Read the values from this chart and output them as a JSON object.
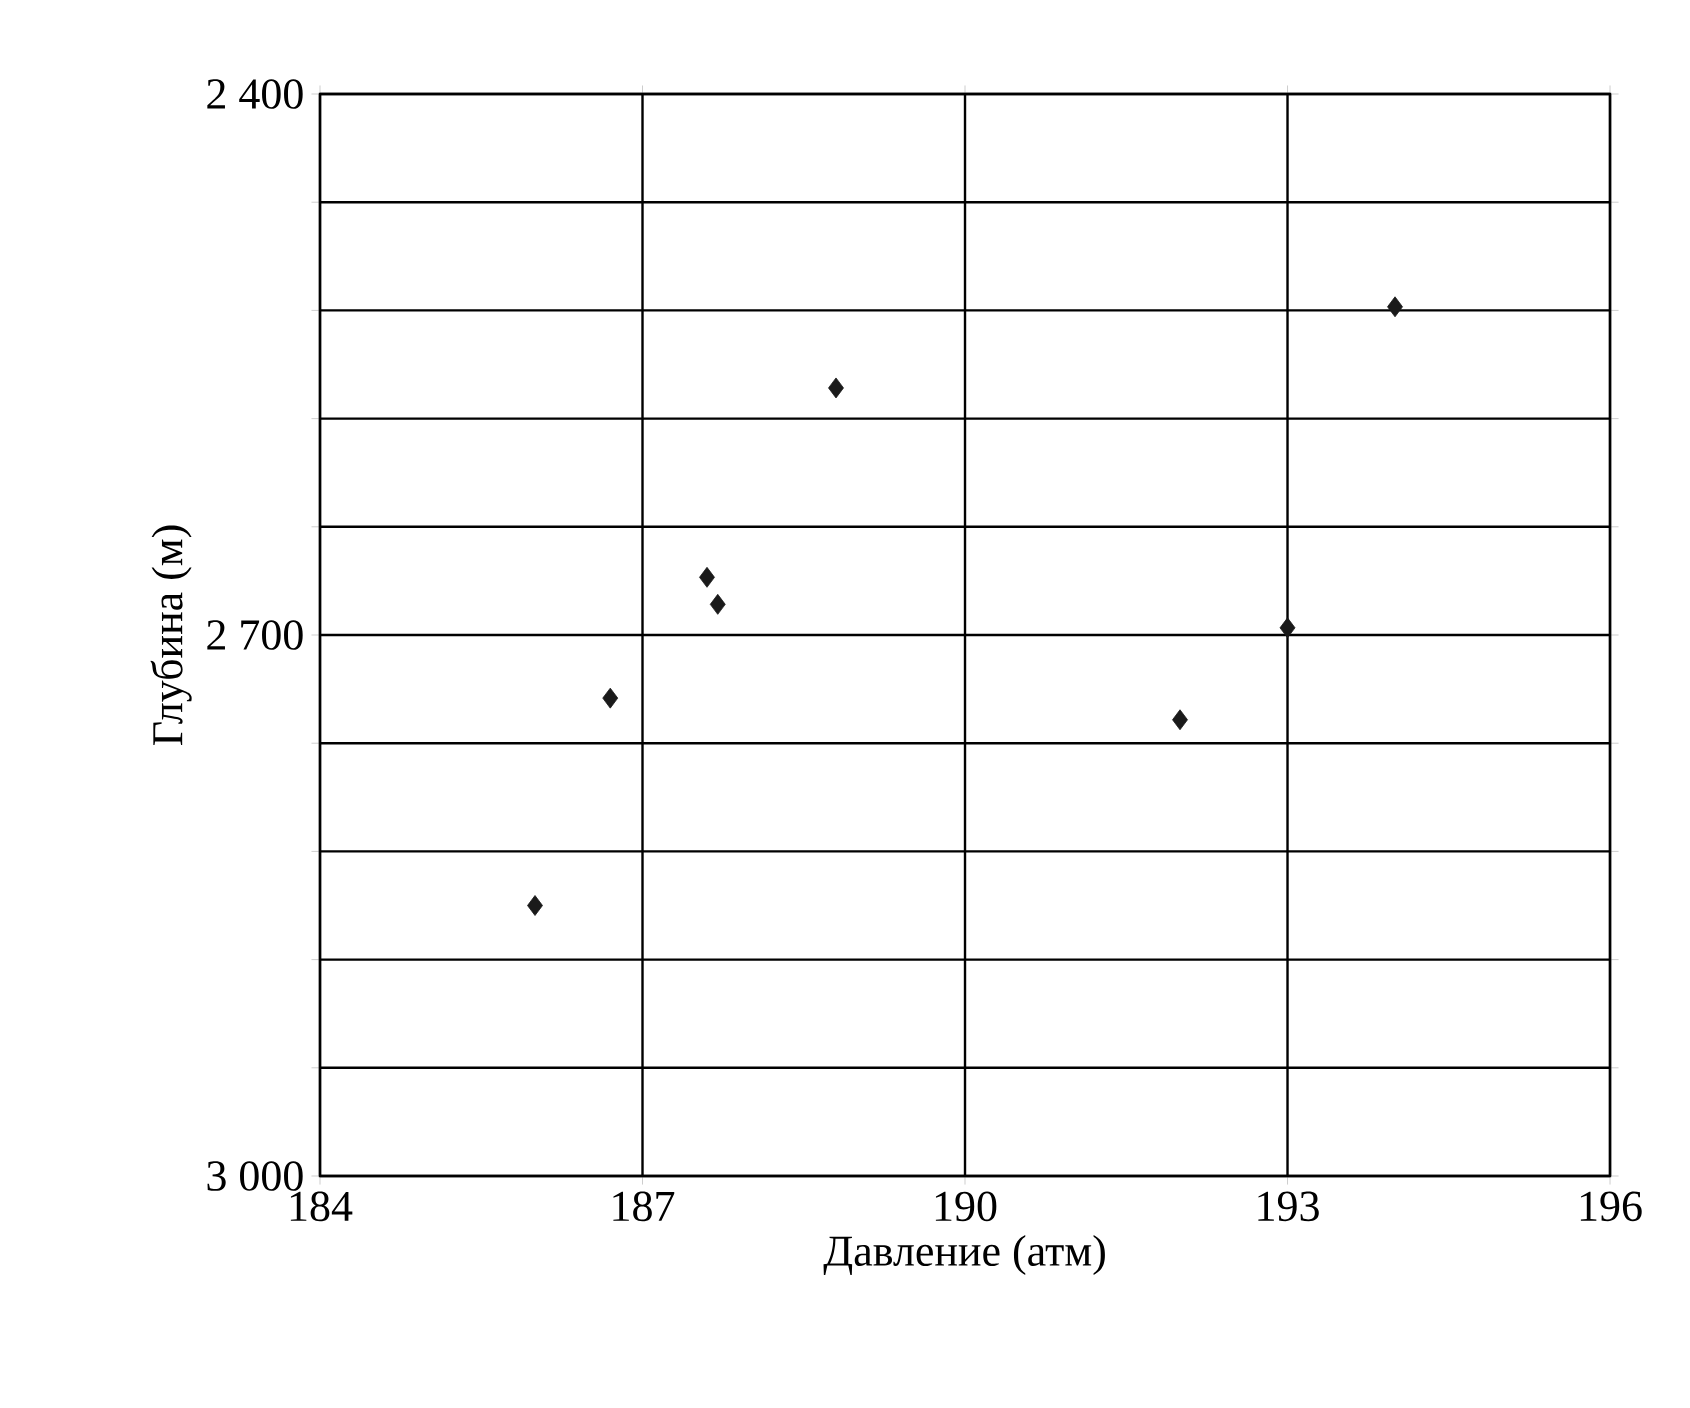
{
  "chart_data": {
    "type": "scatter",
    "xlabel": "Давление (атм)",
    "ylabel": "Глубина (м)",
    "x": [
      186.0,
      186.7,
      187.6,
      187.7,
      188.8,
      192.0,
      193.0,
      194.0
    ],
    "values": [
      2850,
      2735,
      2668,
      2683,
      2563,
      2747,
      2696,
      2518
    ],
    "color": "#1a1a1a",
    "marker": "diamond",
    "grid": true,
    "xlim": [
      184,
      196
    ],
    "xticks": [
      184,
      187,
      190,
      193,
      196
    ],
    "ylim": [
      3000,
      2400
    ],
    "yticks": [
      {
        "value": 2400,
        "label": "2 400"
      },
      {
        "value": 2460,
        "label": null
      },
      {
        "value": 2520,
        "label": null
      },
      {
        "value": 2580,
        "label": null
      },
      {
        "value": 2640,
        "label": null
      },
      {
        "value": 2700,
        "label": "2 700"
      },
      {
        "value": 2760,
        "label": null
      },
      {
        "value": 2820,
        "label": null
      },
      {
        "value": 2880,
        "label": null
      },
      {
        "value": 2940,
        "label": null
      },
      {
        "value": 3000,
        "label": "3 000"
      }
    ]
  }
}
